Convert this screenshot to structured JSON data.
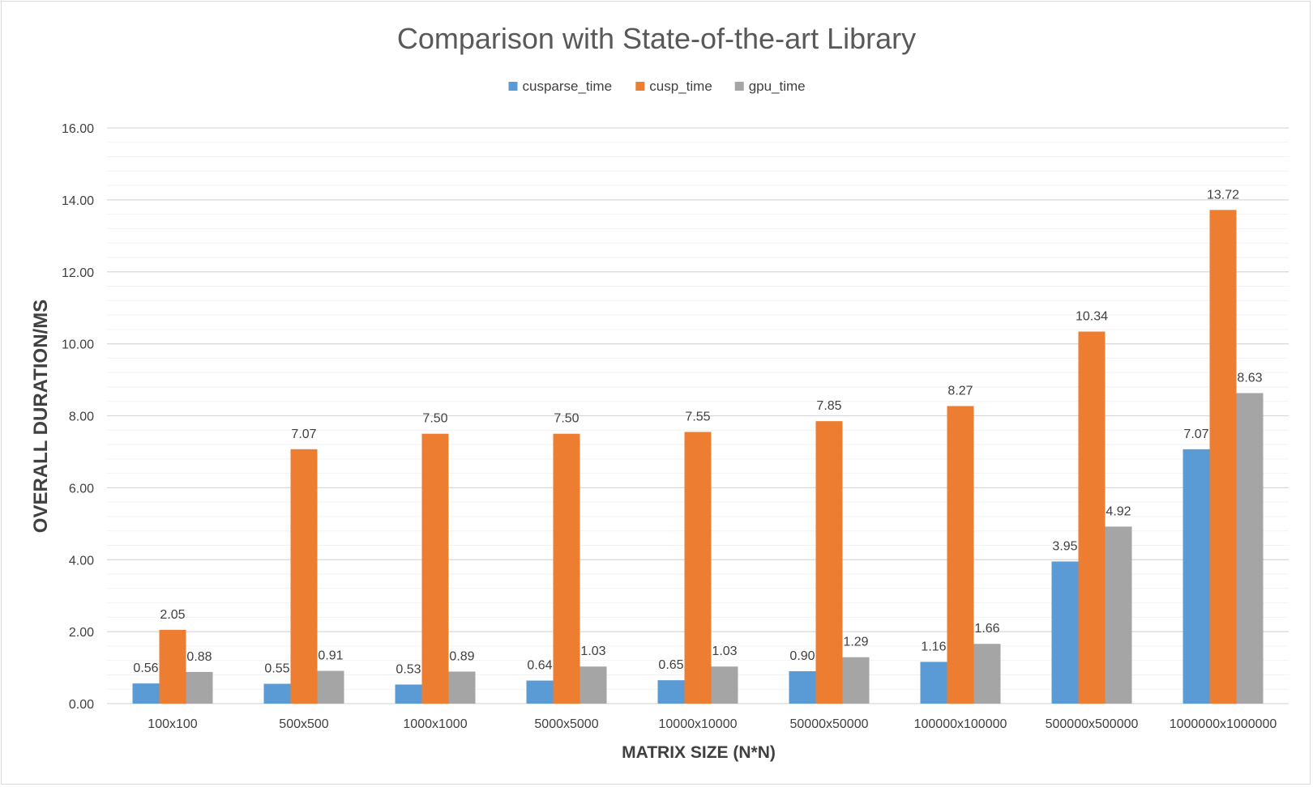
{
  "chart_data": {
    "type": "bar",
    "title": "Comparison with State-of-the-art Library",
    "xlabel": "MATRIX SIZE (N*N)",
    "ylabel": "OVERALL DURATION/MS",
    "ylim": [
      0,
      16
    ],
    "y_major_step": 2,
    "y_minor_step": 0.4,
    "y_tick_labels": [
      "0.00",
      "2.00",
      "4.00",
      "6.00",
      "8.00",
      "10.00",
      "12.00",
      "14.00",
      "16.00"
    ],
    "grid": true,
    "legend_position": "top",
    "categories": [
      "100x100",
      "500x500",
      "1000x1000",
      "5000x5000",
      "10000x10000",
      "50000x50000",
      "100000x100000",
      "500000x500000",
      "1000000x1000000"
    ],
    "series": [
      {
        "name": "cusparse_time",
        "color": "#5b9bd5",
        "values": [
          0.56,
          0.55,
          0.53,
          0.64,
          0.65,
          0.9,
          1.16,
          3.95,
          7.07
        ],
        "value_labels": [
          "0.56",
          "0.55",
          "0.53",
          "0.64",
          "0.65",
          "0.90",
          "1.16",
          "3.95",
          "7.07"
        ]
      },
      {
        "name": "cusp_time",
        "color": "#ed7d31",
        "values": [
          2.05,
          7.07,
          7.5,
          7.5,
          7.55,
          7.85,
          8.27,
          10.34,
          13.72
        ],
        "value_labels": [
          "2.05",
          "7.07",
          "7.50",
          "7.50",
          "7.55",
          "7.85",
          "8.27",
          "10.34",
          "13.72"
        ]
      },
      {
        "name": "gpu_time",
        "color": "#a5a5a5",
        "values": [
          0.88,
          0.91,
          0.89,
          1.03,
          1.03,
          1.29,
          1.66,
          4.92,
          8.63
        ],
        "value_labels": [
          "0.88",
          "0.91",
          "0.89",
          "1.03",
          "1.03",
          "1.29",
          "1.66",
          "4.92",
          "8.63"
        ]
      }
    ]
  }
}
